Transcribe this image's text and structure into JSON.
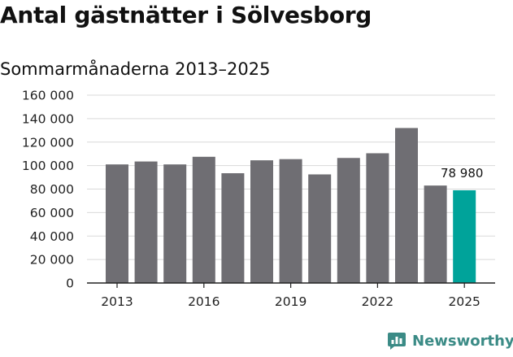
{
  "header": {
    "title": "Antal gästnätter i Sölvesborg",
    "subtitle": "Sommarmånaderna 2013–2025"
  },
  "brand": {
    "name": "Newsworthy"
  },
  "colors": {
    "bar": "#6f6e73",
    "highlight": "#00a39a",
    "grid": "#d9d9d9",
    "brand": "#3b8b86"
  },
  "chart_data": {
    "type": "bar",
    "categories": [
      "2013",
      "2014",
      "2015",
      "2016",
      "2017",
      "2018",
      "2019",
      "2020",
      "2021",
      "2022",
      "2023",
      "2024",
      "2025"
    ],
    "values": [
      101000,
      103500,
      101000,
      107500,
      93500,
      104500,
      105500,
      92500,
      106500,
      110500,
      132000,
      83000,
      78980
    ],
    "xtick_labels": [
      "2013",
      "2016",
      "2019",
      "2022",
      "2025"
    ],
    "ytick_labels": [
      "0",
      "20 000",
      "40 000",
      "60 000",
      "80 000",
      "100 000",
      "120 000",
      "140 000",
      "160 000"
    ],
    "ylim": [
      0,
      160000
    ],
    "highlight_index": 12,
    "data_labels": [
      {
        "index": 12,
        "text": "78 980"
      }
    ],
    "title": "Antal gästnätter i Sölvesborg",
    "subtitle": "Sommarmånaderna 2013–2025",
    "xlabel": "",
    "ylabel": "",
    "grid": true,
    "legend": "none"
  }
}
